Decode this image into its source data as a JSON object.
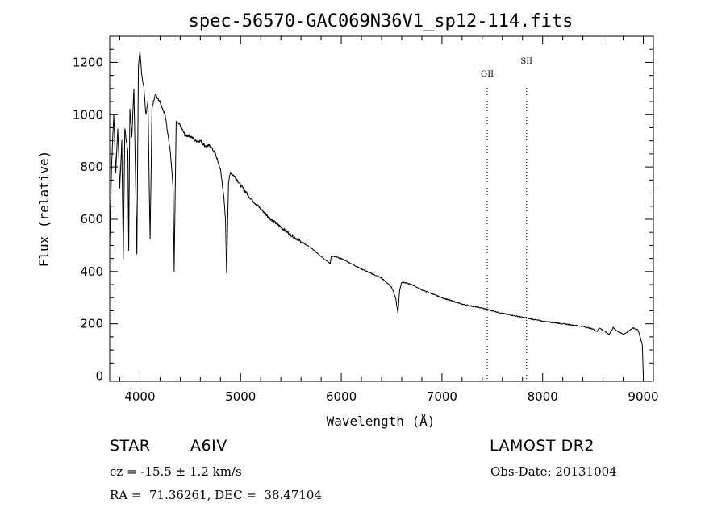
{
  "chart_data": {
    "type": "line",
    "title": "spec-56570-GAC069N36V1_sp12-114.fits",
    "xlabel": "Wavelength (Å)",
    "ylabel": "Flux (relative)",
    "xlim": [
      3700,
      9100
    ],
    "ylim": [
      -20,
      1300
    ],
    "x_ticks": [
      4000,
      5000,
      6000,
      7000,
      8000,
      9000
    ],
    "y_ticks": [
      0,
      200,
      400,
      600,
      800,
      1000,
      1200
    ],
    "grid": false,
    "reference_lines": [
      {
        "label": "OII",
        "x": 7450,
        "style": "dotted"
      },
      {
        "label": "SII",
        "x": 7840,
        "style": "dotted"
      }
    ],
    "series": [
      {
        "x": [
          3700,
          3720,
          3740,
          3760,
          3780,
          3800,
          3820,
          3835,
          3850,
          3865,
          3880,
          3889,
          3900,
          3920,
          3940,
          3960,
          3970,
          3985,
          4000,
          4020,
          4040,
          4060,
          4080,
          4101,
          4120,
          4150,
          4200,
          4250,
          4300,
          4330,
          4340,
          4360,
          4400,
          4450,
          4500,
          4550,
          4600,
          4650,
          4700,
          4750,
          4800,
          4830,
          4850,
          4861,
          4880,
          4900,
          4950,
          5000,
          5100,
          5200,
          5300,
          5400,
          5500,
          5700,
          5890,
          5900,
          6000,
          6200,
          6400,
          6500,
          6540,
          6563,
          6580,
          6600,
          6700,
          6800,
          7000,
          7200,
          7400,
          7600,
          7800,
          8000,
          8200,
          8400,
          8500,
          8542,
          8560,
          8662,
          8700,
          8750,
          8800,
          8850,
          8900,
          8950,
          8990,
          9000
        ],
        "y": [
          500,
          820,
          1000,
          780,
          950,
          720,
          900,
          450,
          950,
          900,
          860,
          480,
          1020,
          920,
          1100,
          680,
          470,
          1180,
          1240,
          1150,
          1100,
          1000,
          1050,
          520,
          1020,
          1080,
          1050,
          1000,
          870,
          720,
          400,
          970,
          960,
          920,
          920,
          900,
          900,
          880,
          880,
          850,
          790,
          700,
          600,
          390,
          740,
          780,
          760,
          730,
          680,
          640,
          600,
          570,
          540,
          490,
          430,
          460,
          450,
          410,
          375,
          340,
          300,
          240,
          330,
          360,
          350,
          330,
          300,
          275,
          260,
          240,
          225,
          210,
          200,
          190,
          180,
          170,
          185,
          160,
          185,
          170,
          160,
          170,
          185,
          175,
          120,
          0
        ]
      }
    ]
  },
  "info": {
    "left_line1_a": "STAR",
    "left_line1_b": "A6IV",
    "left_line2": "cz = -15.5 ± 1.2 km/s",
    "left_line3": "RA =  71.36261, DEC =  38.47104",
    "right_line1": "LAMOST DR2",
    "right_line2": "Obs-Date: 20131004"
  },
  "colors": {
    "line": "#000000",
    "background": "#ffffff"
  }
}
